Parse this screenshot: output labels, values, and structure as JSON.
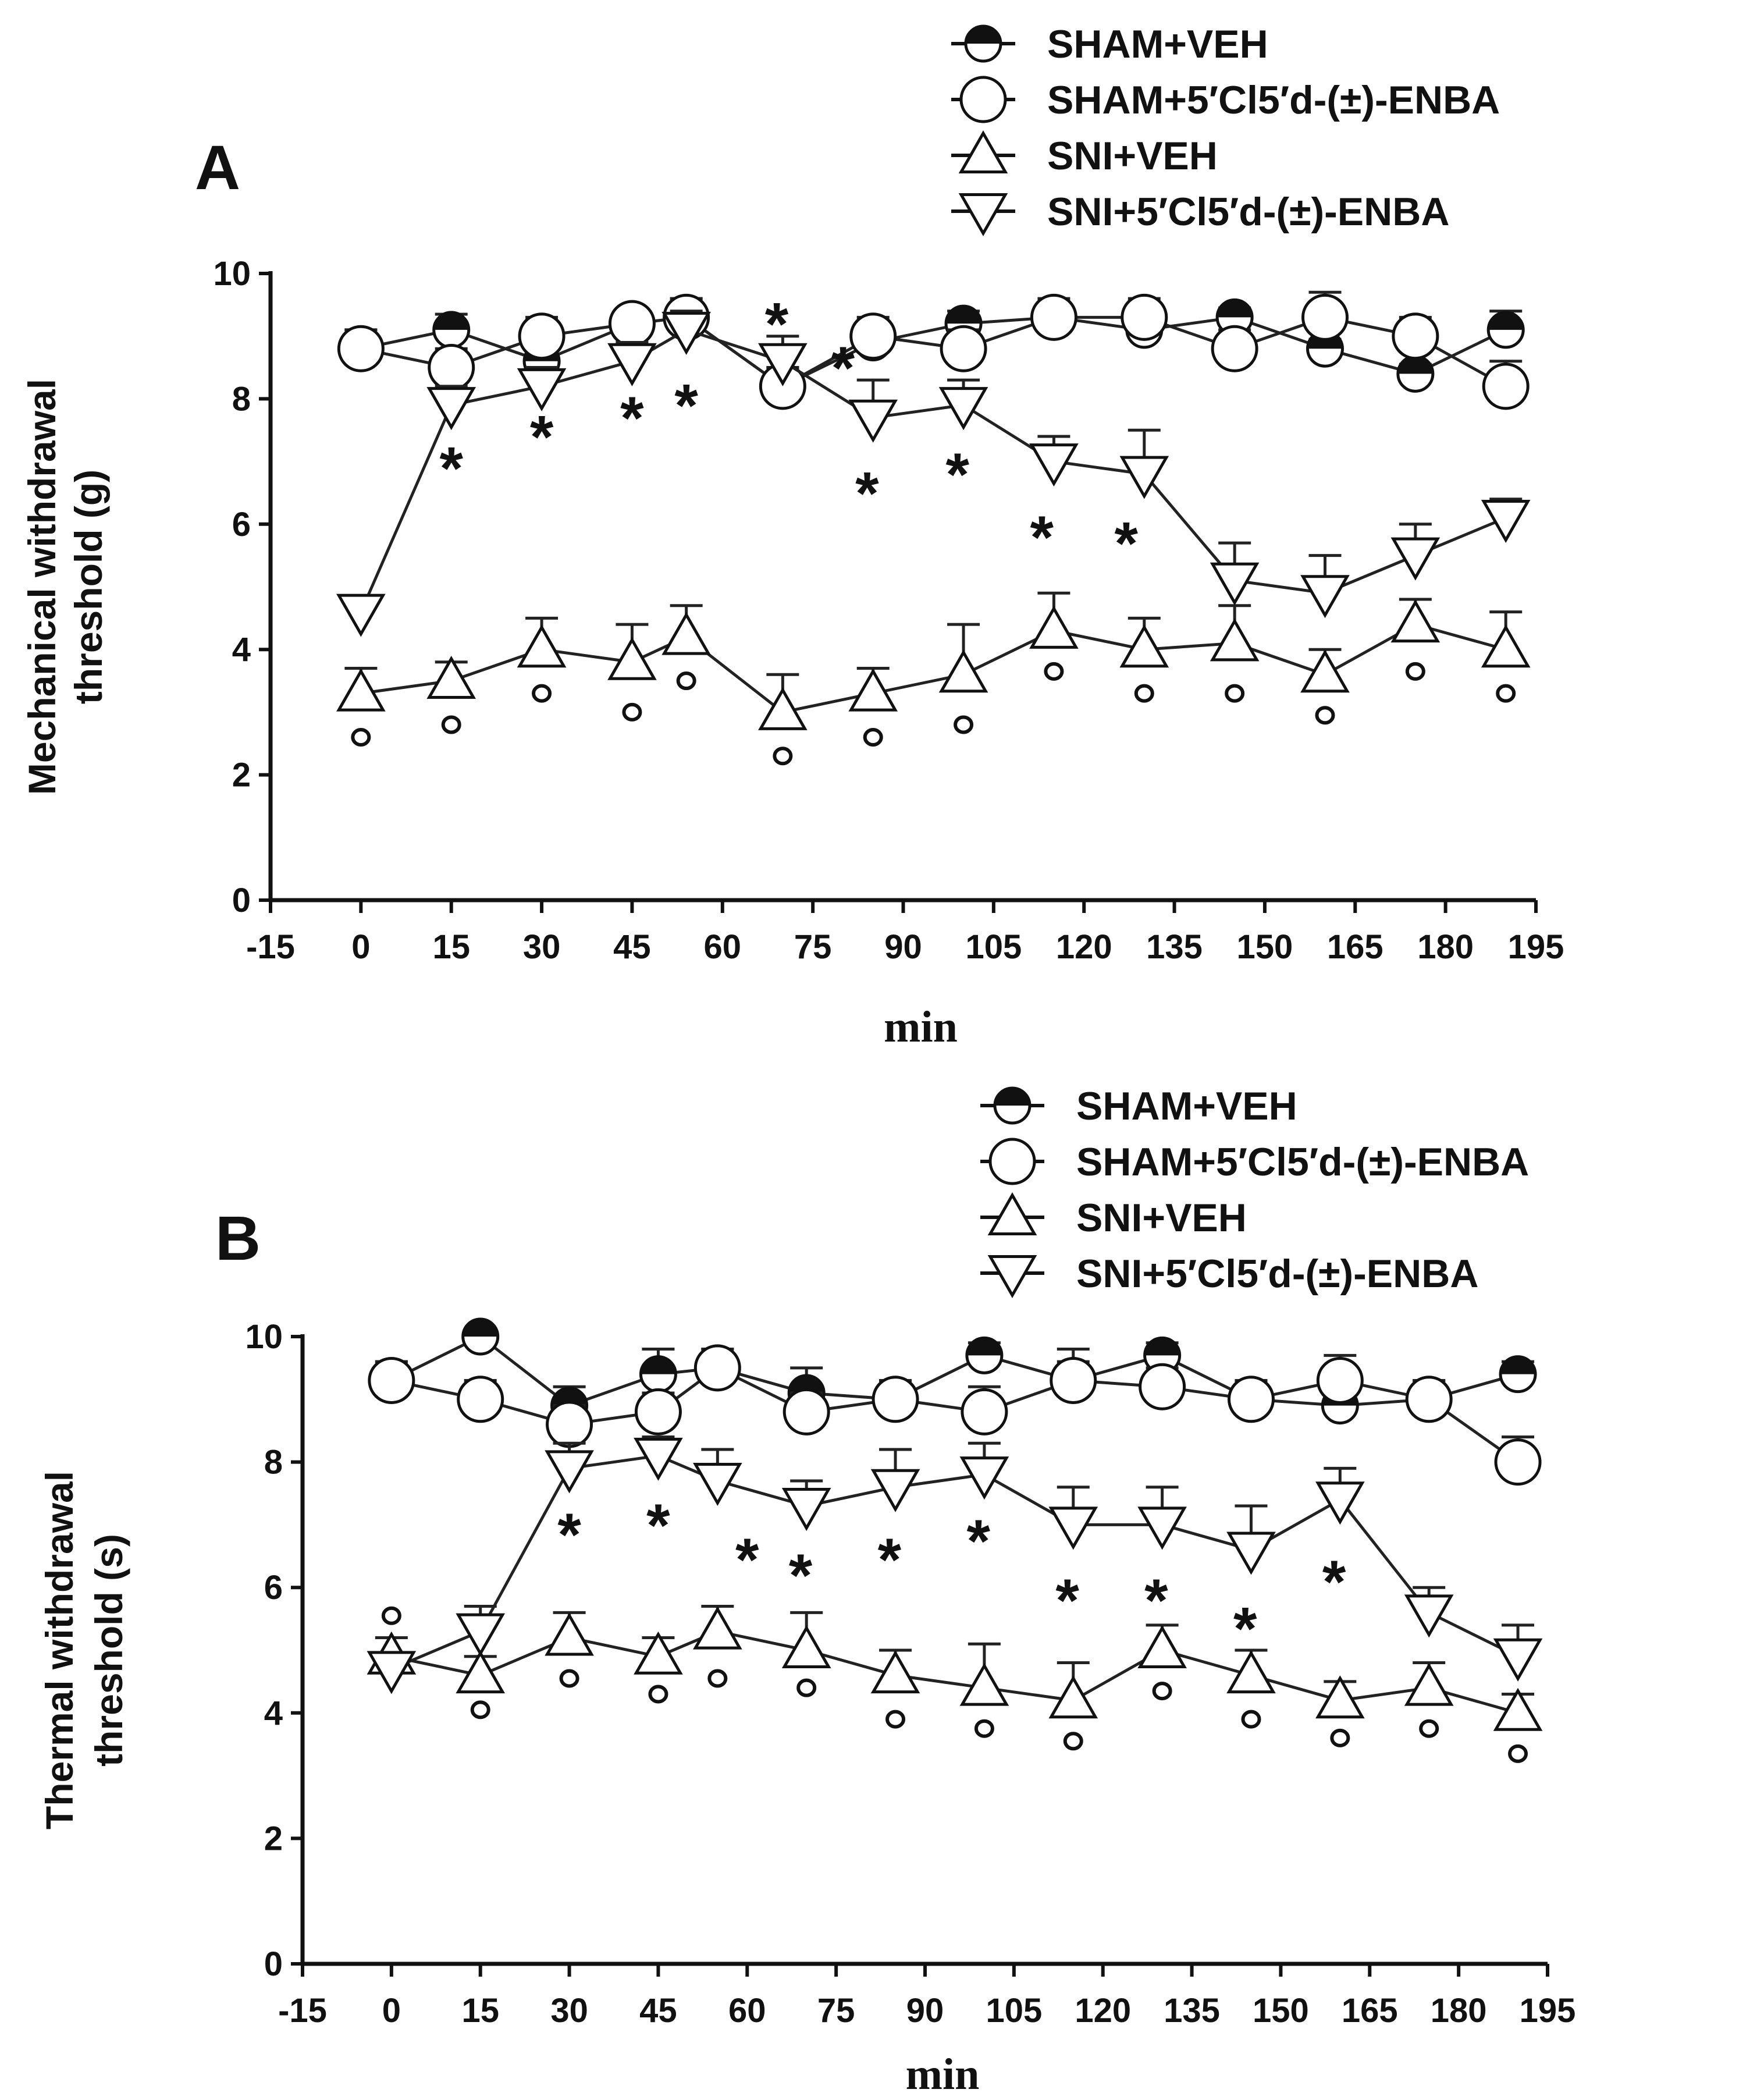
{
  "legend": {
    "items": [
      {
        "label": "SHAM+VEH",
        "marker": "half-filled-circle"
      },
      {
        "label": "SHAM+5′Cl5′d-(±)-ENBA",
        "marker": "open-circle"
      },
      {
        "label": "SNI+VEH",
        "marker": "open-triangle-up"
      },
      {
        "label": "SNI+5′Cl5′d-(±)-ENBA",
        "marker": "open-triangle-down"
      }
    ]
  },
  "chart_data": [
    {
      "panel": "A",
      "type": "line",
      "xlabel": "min",
      "ylabel_line1": "Mechanical withdrawal",
      "ylabel_line2": "threshold (g)",
      "xlim": [
        -15,
        195
      ],
      "ylim": [
        0,
        10
      ],
      "xticks": [
        "-15",
        "0",
        "15",
        "30",
        "45",
        "60",
        "75",
        "90",
        "105",
        "120",
        "135",
        "150",
        "165",
        "180",
        "195"
      ],
      "yticks": [
        "0",
        "2",
        "4",
        "6",
        "8",
        "10"
      ],
      "series": [
        {
          "name": "SHAM+VEH",
          "marker": "half-filled-circle",
          "x": [
            0,
            15,
            30,
            45,
            54,
            70,
            85,
            100,
            115,
            130,
            145,
            160,
            175,
            190
          ],
          "y": [
            8.8,
            9.1,
            8.6,
            9.2,
            9.3,
            8.2,
            8.9,
            9.2,
            9.3,
            9.1,
            9.3,
            8.8,
            8.4,
            9.1
          ],
          "err": [
            0.3,
            0.25,
            0.25,
            0.2,
            0.3,
            0.3,
            0.3,
            0.2,
            0.2,
            0.2,
            0.15,
            0.15,
            0.15,
            0.3
          ]
        },
        {
          "name": "SHAM+5′Cl5′d-(±)-ENBA",
          "marker": "open-circle",
          "x": [
            0,
            15,
            30,
            45,
            54,
            70,
            85,
            100,
            115,
            130,
            145,
            160,
            175,
            190
          ],
          "y": [
            8.8,
            8.5,
            9.0,
            9.2,
            9.3,
            8.2,
            9.0,
            8.8,
            9.3,
            9.3,
            8.8,
            9.3,
            9.0,
            8.2
          ],
          "err": [
            0.3,
            0.3,
            0.3,
            0.2,
            0.3,
            0.3,
            0.3,
            0.3,
            0.3,
            0.3,
            0.3,
            0.4,
            0.3,
            0.4
          ]
        },
        {
          "name": "SNI+VEH",
          "marker": "open-triangle-up",
          "x": [
            0,
            15,
            30,
            45,
            54,
            70,
            85,
            100,
            115,
            130,
            145,
            160,
            175,
            190
          ],
          "y": [
            3.3,
            3.5,
            4.0,
            3.8,
            4.2,
            3.0,
            3.3,
            3.6,
            4.3,
            4.0,
            4.1,
            3.6,
            4.4,
            4.0
          ],
          "err": [
            0.4,
            0.3,
            0.5,
            0.6,
            0.5,
            0.6,
            0.4,
            0.8,
            0.6,
            0.5,
            0.6,
            0.4,
            0.4,
            0.6
          ]
        },
        {
          "name": "SNI+5′Cl5′d-(±)-ENBA",
          "marker": "open-triangle-down",
          "x": [
            0,
            15,
            30,
            45,
            54,
            70,
            85,
            100,
            115,
            130,
            145,
            160,
            175,
            190
          ],
          "y": [
            4.6,
            7.9,
            8.2,
            8.6,
            9.1,
            8.6,
            7.7,
            7.9,
            7.0,
            6.8,
            5.1,
            4.9,
            5.5,
            6.1
          ],
          "err": [
            0.2,
            0.3,
            0.3,
            0.3,
            0.3,
            0.4,
            0.6,
            0.4,
            0.4,
            0.7,
            0.6,
            0.6,
            0.5,
            0.3
          ]
        }
      ],
      "significance_stars": [
        {
          "label": "*",
          "x": 15,
          "y": 7.1
        },
        {
          "label": "*",
          "x": 30,
          "y": 7.6
        },
        {
          "label": "*",
          "x": 45,
          "y": 7.9
        },
        {
          "label": "*",
          "x": 54,
          "y": 8.1
        },
        {
          "label": "*",
          "x": 69,
          "y": 9.4
        },
        {
          "label": "*",
          "x": 80,
          "y": 8.7
        },
        {
          "label": "*",
          "x": 84,
          "y": 6.7
        },
        {
          "label": "*",
          "x": 99,
          "y": 7.0
        },
        {
          "label": "*",
          "x": 113,
          "y": 6.0
        },
        {
          "label": "*",
          "x": 127,
          "y": 5.9
        }
      ],
      "degree_marks": [
        {
          "label": "o",
          "x": 0,
          "y": 2.6
        },
        {
          "label": "o",
          "x": 15,
          "y": 2.8
        },
        {
          "label": "o",
          "x": 30,
          "y": 3.3
        },
        {
          "label": "o",
          "x": 45,
          "y": 3.0
        },
        {
          "label": "o",
          "x": 54,
          "y": 3.5
        },
        {
          "label": "o",
          "x": 70,
          "y": 2.3
        },
        {
          "label": "o",
          "x": 85,
          "y": 2.6
        },
        {
          "label": "o",
          "x": 100,
          "y": 2.8
        },
        {
          "label": "o",
          "x": 115,
          "y": 3.65
        },
        {
          "label": "o",
          "x": 130,
          "y": 3.3
        },
        {
          "label": "o",
          "x": 145,
          "y": 3.3
        },
        {
          "label": "o",
          "x": 160,
          "y": 2.95
        },
        {
          "label": "o",
          "x": 175,
          "y": 3.65
        },
        {
          "label": "o",
          "x": 190,
          "y": 3.3
        }
      ]
    },
    {
      "panel": "B",
      "type": "line",
      "xlabel": "min",
      "ylabel_line1": "Thermal withdrawal",
      "ylabel_line2": "threshold (s)",
      "xlim": [
        -15,
        195
      ],
      "ylim": [
        0,
        10
      ],
      "xticks": [
        "-15",
        "0",
        "15",
        "30",
        "45",
        "60",
        "75",
        "90",
        "105",
        "120",
        "135",
        "150",
        "165",
        "180",
        "195"
      ],
      "yticks": [
        "0",
        "2",
        "4",
        "6",
        "8",
        "10"
      ],
      "series": [
        {
          "name": "SHAM+VEH",
          "marker": "half-filled-circle",
          "x": [
            0,
            15,
            30,
            45,
            55,
            70,
            85,
            100,
            115,
            130,
            145,
            160,
            175,
            190
          ],
          "y": [
            9.3,
            10.0,
            8.9,
            9.4,
            9.5,
            9.1,
            9.0,
            9.7,
            9.3,
            9.7,
            9.0,
            8.9,
            9.0,
            9.4
          ],
          "err": [
            0.3,
            0.05,
            0.3,
            0.4,
            0.3,
            0.4,
            0.3,
            0.2,
            0.5,
            0.2,
            0.3,
            0.1,
            0.3,
            0.2
          ]
        },
        {
          "name": "SHAM+5′Cl5′d-(±)-ENBA",
          "marker": "open-circle",
          "x": [
            0,
            15,
            30,
            45,
            55,
            70,
            85,
            100,
            115,
            130,
            145,
            160,
            175,
            190
          ],
          "y": [
            9.3,
            9.0,
            8.6,
            8.8,
            9.5,
            8.8,
            9.0,
            8.8,
            9.3,
            9.2,
            9.0,
            9.3,
            9.0,
            8.0
          ],
          "err": [
            0.3,
            0.3,
            0.3,
            0.3,
            0.3,
            0.3,
            0.3,
            0.4,
            0.3,
            0.3,
            0.3,
            0.4,
            0.3,
            0.4
          ]
        },
        {
          "name": "SNI+VEH",
          "marker": "open-triangle-up",
          "x": [
            0,
            15,
            30,
            45,
            55,
            70,
            85,
            100,
            115,
            130,
            145,
            160,
            175,
            190
          ],
          "y": [
            4.9,
            4.6,
            5.2,
            4.9,
            5.3,
            5.0,
            4.6,
            4.4,
            4.2,
            5.0,
            4.6,
            4.2,
            4.4,
            4.0
          ],
          "err": [
            0.3,
            0.3,
            0.4,
            0.3,
            0.4,
            0.6,
            0.4,
            0.7,
            0.6,
            0.4,
            0.4,
            0.3,
            0.4,
            0.3
          ]
        },
        {
          "name": "SNI+5′Cl5′d-(±)-ENBA",
          "marker": "open-triangle-down",
          "x": [
            0,
            15,
            30,
            45,
            55,
            70,
            85,
            100,
            115,
            130,
            145,
            160,
            175,
            190
          ],
          "y": [
            4.7,
            5.3,
            7.9,
            8.1,
            7.7,
            7.3,
            7.6,
            7.8,
            7.0,
            7.0,
            6.6,
            7.4,
            5.6,
            4.9
          ],
          "err": [
            0.2,
            0.4,
            0.4,
            0.3,
            0.5,
            0.4,
            0.6,
            0.5,
            0.6,
            0.6,
            0.7,
            0.5,
            0.4,
            0.5
          ]
        }
      ],
      "significance_stars": [
        {
          "label": "*",
          "x": 30,
          "y": 7.05
        },
        {
          "label": "*",
          "x": 45,
          "y": 7.2
        },
        {
          "label": "*",
          "x": 60,
          "y": 6.65
        },
        {
          "label": "*",
          "x": 69,
          "y": 6.4
        },
        {
          "label": "*",
          "x": 84,
          "y": 6.65
        },
        {
          "label": "*",
          "x": 99,
          "y": 6.95
        },
        {
          "label": "*",
          "x": 114,
          "y": 6.0
        },
        {
          "label": "*",
          "x": 129,
          "y": 6.0
        },
        {
          "label": "*",
          "x": 144,
          "y": 5.55
        },
        {
          "label": "*",
          "x": 159,
          "y": 6.3
        }
      ],
      "degree_marks": [
        {
          "label": "o",
          "x": 0,
          "y": 5.55
        },
        {
          "label": "o",
          "x": 15,
          "y": 4.05
        },
        {
          "label": "o",
          "x": 30,
          "y": 4.55
        },
        {
          "label": "o",
          "x": 45,
          "y": 4.3
        },
        {
          "label": "o",
          "x": 55,
          "y": 4.55
        },
        {
          "label": "o",
          "x": 70,
          "y": 4.4
        },
        {
          "label": "o",
          "x": 85,
          "y": 3.9
        },
        {
          "label": "o",
          "x": 100,
          "y": 3.75
        },
        {
          "label": "o",
          "x": 115,
          "y": 3.55
        },
        {
          "label": "o",
          "x": 130,
          "y": 4.35
        },
        {
          "label": "o",
          "x": 145,
          "y": 3.9
        },
        {
          "label": "o",
          "x": 160,
          "y": 3.6
        },
        {
          "label": "o",
          "x": 175,
          "y": 3.75
        },
        {
          "label": "o",
          "x": 190,
          "y": 3.35
        }
      ]
    }
  ]
}
